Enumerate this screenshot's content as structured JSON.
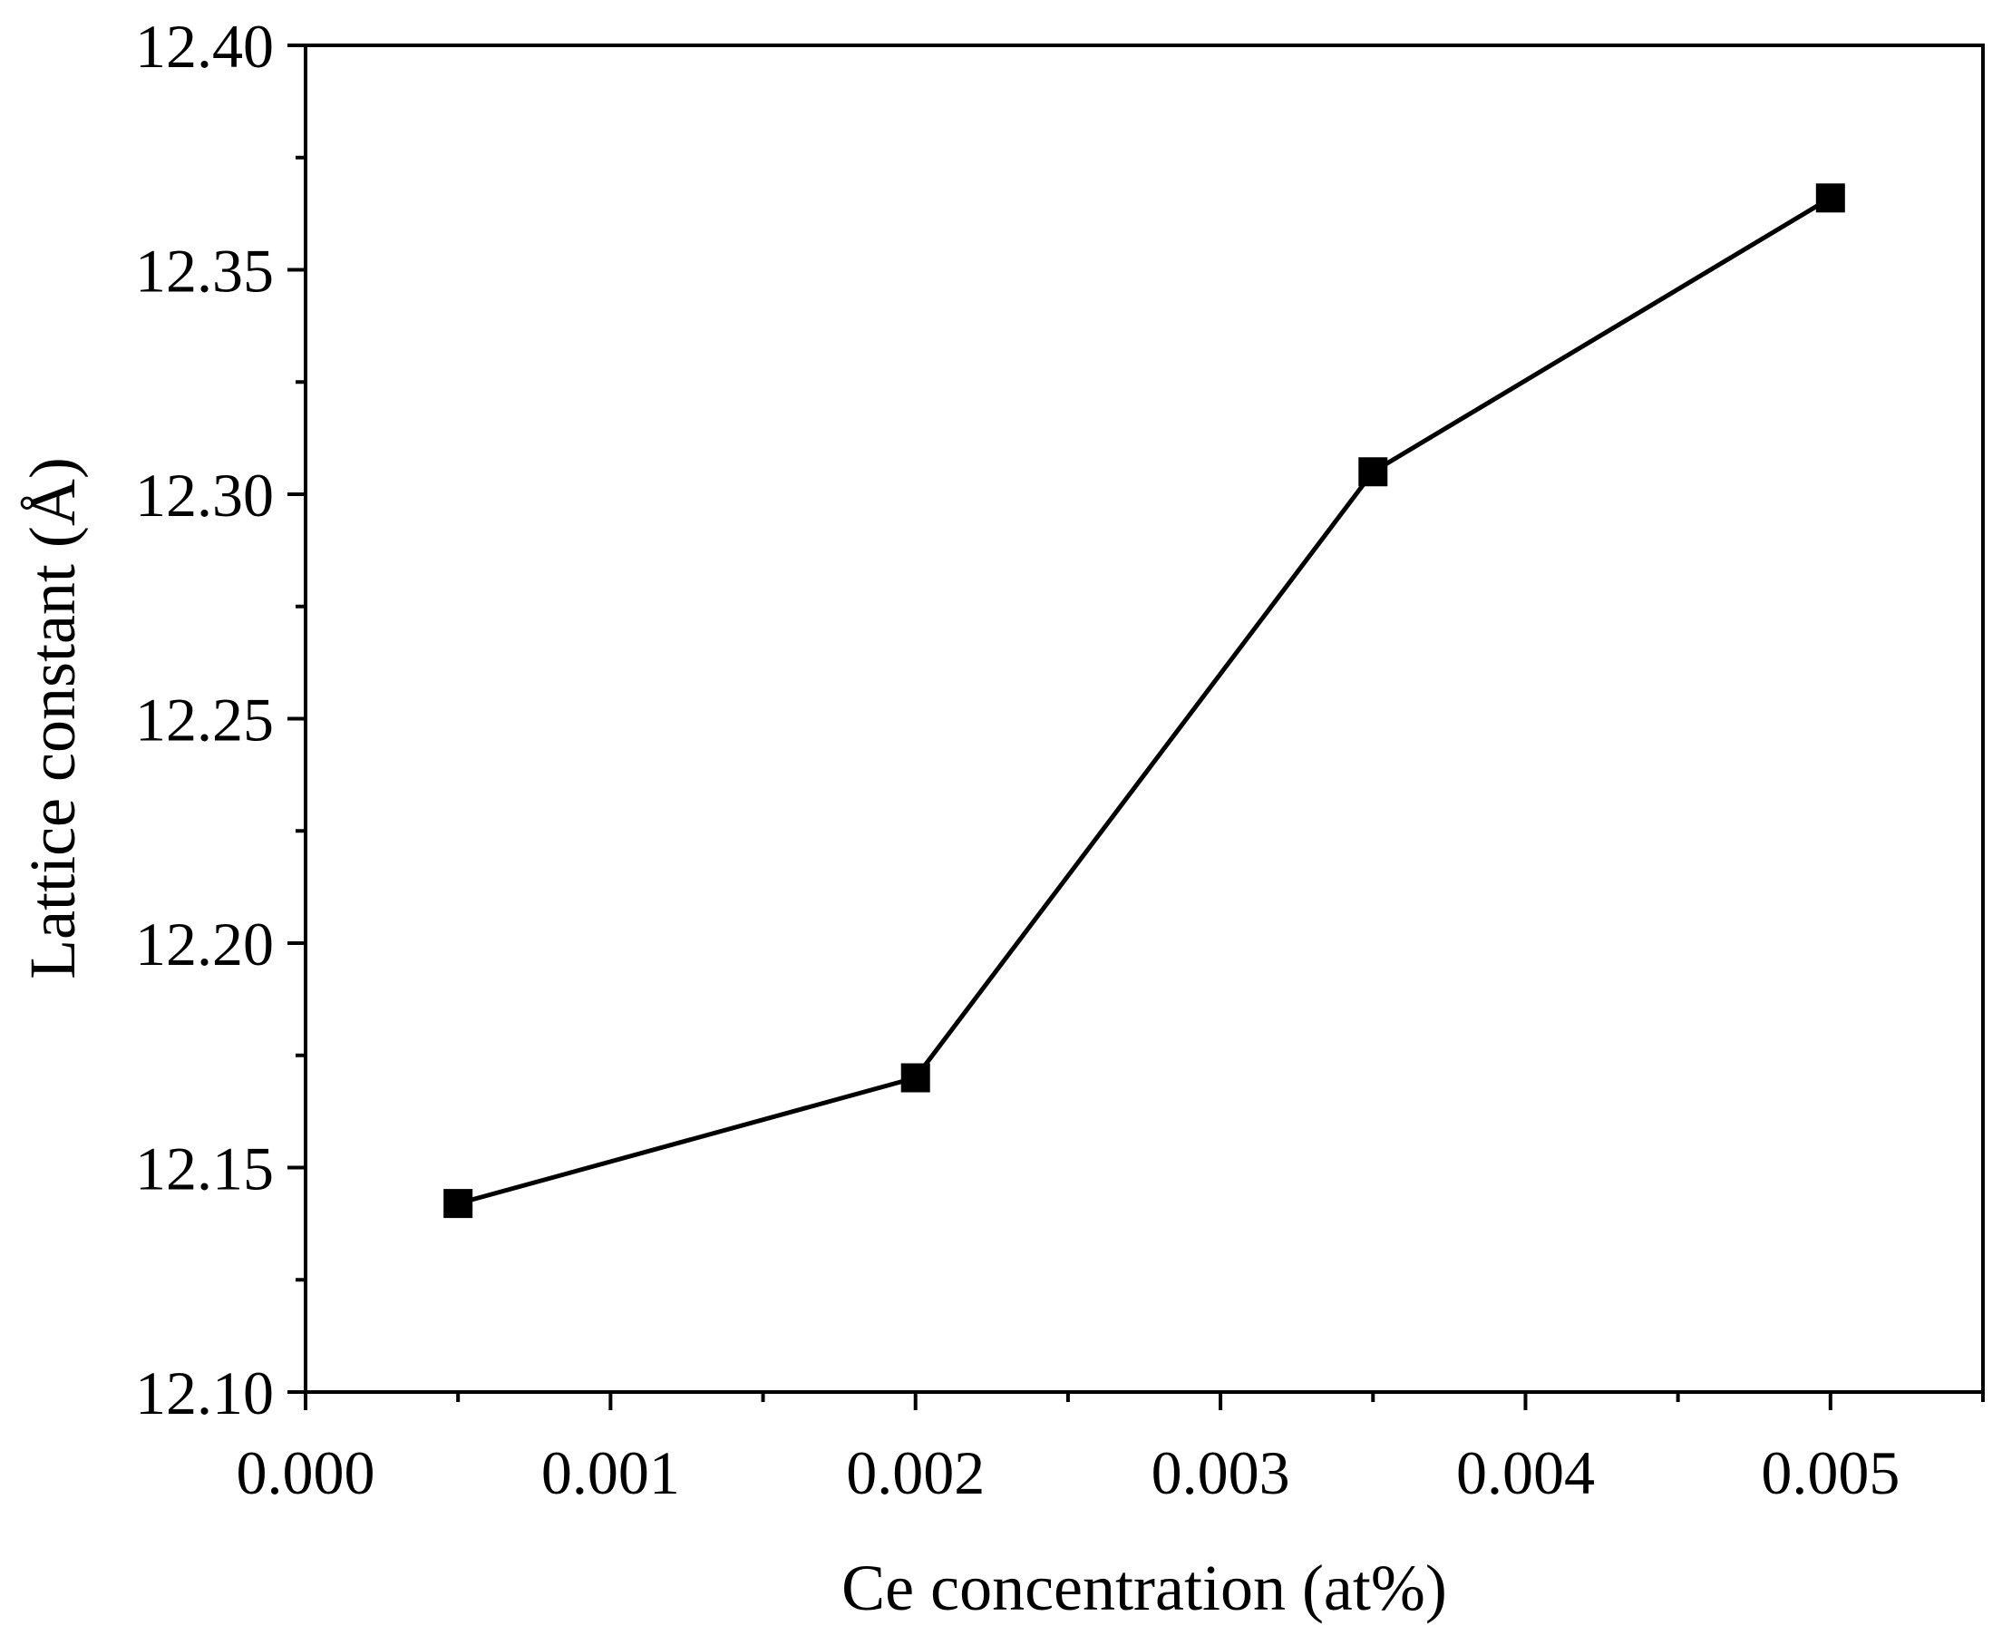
{
  "chart_data": {
    "type": "line",
    "title": "",
    "xlabel": "Ce concentration (at%)",
    "ylabel": "Lattice constant (Å)",
    "xlim": [
      0.0,
      0.0055
    ],
    "ylim": [
      12.1,
      12.4
    ],
    "x_ticks": [
      "0.000",
      "0.001",
      "0.002",
      "0.003",
      "0.004",
      "0.005"
    ],
    "y_ticks": [
      "12.10",
      "12.15",
      "12.20",
      "12.25",
      "12.30",
      "12.35",
      "12.40"
    ],
    "grid": false,
    "legend": "none",
    "marker": "square",
    "colors": {
      "line": "#000000",
      "marker": "#000000",
      "axis": "#000000"
    },
    "series": [
      {
        "x": [
          0.0005,
          0.002,
          0.0035,
          0.005
        ],
        "y": [
          12.142,
          12.17,
          12.305,
          12.366
        ]
      }
    ]
  }
}
